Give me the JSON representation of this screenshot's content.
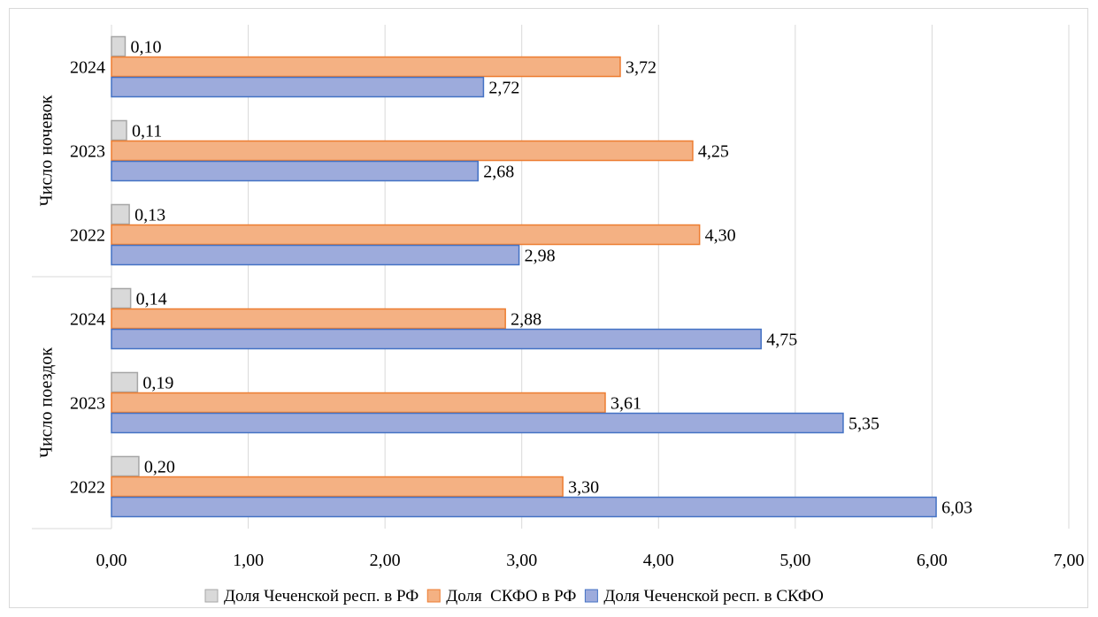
{
  "chart_data": {
    "type": "bar",
    "orientation": "horizontal",
    "groups": [
      {
        "label": "Число ночевок",
        "categories": [
          "2024",
          "2023",
          "2022"
        ]
      },
      {
        "label": "Число поездок",
        "categories": [
          "2024",
          "2023",
          "2022"
        ]
      }
    ],
    "series": [
      {
        "name": "Доля Чеченской респ. в РФ",
        "color": "#d9d9d9",
        "stroke": "#a6a6a6",
        "values": [
          0.1,
          0.11,
          0.13,
          0.14,
          0.19,
          0.2
        ],
        "labels": [
          "0,10",
          "0,11",
          "0,13",
          "0,14",
          "0,19",
          "0,20"
        ]
      },
      {
        "name": "Доля  СКФО в РФ",
        "color": "#f4b183",
        "stroke": "#ed7d31",
        "values": [
          3.72,
          4.25,
          4.3,
          2.88,
          3.61,
          3.3
        ],
        "labels": [
          "3,72",
          "4,25",
          "4,30",
          "2,88",
          "3,61",
          "3,30"
        ]
      },
      {
        "name": "Доля Чеченской респ. в СКФО",
        "color": "#9dabdc",
        "stroke": "#4472c4",
        "values": [
          2.72,
          2.68,
          2.98,
          4.75,
          5.35,
          6.03
        ],
        "labels": [
          "2,72",
          "2,68",
          "2,98",
          "4,75",
          "5,35",
          "6,03"
        ]
      }
    ],
    "xlim": [
      0,
      7
    ],
    "xticks": [
      "0,00",
      "1,00",
      "2,00",
      "3,00",
      "4,00",
      "5,00",
      "6,00",
      "7,00"
    ],
    "grid": true,
    "legend_position": "bottom"
  }
}
